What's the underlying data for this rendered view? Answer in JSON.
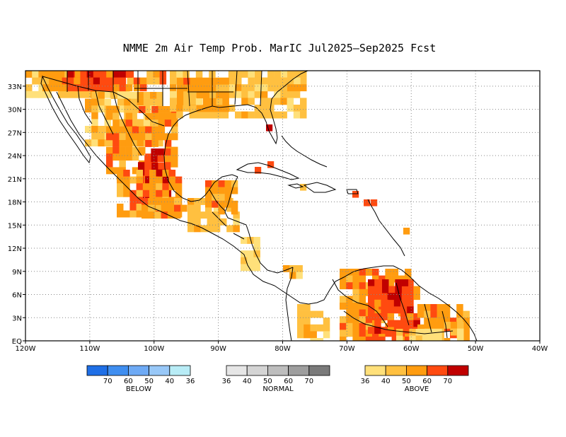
{
  "title": "NMME 2m Air Temp Prob. MarIC  Jul2025–Sep2025 Fcst",
  "map": {
    "lon_range": [
      -120,
      -40
    ],
    "lat_range": [
      0,
      35
    ],
    "x_ticks": [
      "120W",
      "110W",
      "100W",
      "90W",
      "80W",
      "70W",
      "60W",
      "50W",
      "40W"
    ],
    "y_ticks": [
      "EQ",
      "3N",
      "6N",
      "9N",
      "12N",
      "15N",
      "18N",
      "21N",
      "24N",
      "27N",
      "30N",
      "33N"
    ],
    "grid": "dotted"
  },
  "legends": [
    {
      "name": "BELOW",
      "colors": [
        "#1f6fe6",
        "#3f8ef0",
        "#6eaaf5",
        "#98c8f8",
        "#b8ecf6"
      ],
      "labels": [
        "70",
        "60",
        "50",
        "40",
        "36"
      ]
    },
    {
      "name": "NORMAL",
      "colors": [
        "#e6e6e6",
        "#d4d4d4",
        "#bdbdbd",
        "#9e9e9e",
        "#7a7a7a"
      ],
      "labels": [
        "36",
        "40",
        "50",
        "60",
        "70"
      ]
    },
    {
      "name": "ABOVE",
      "colors": [
        "#ffe07a",
        "#ffc040",
        "#ff9c10",
        "#ff4a10",
        "#c00000"
      ],
      "labels": [
        "36",
        "40",
        "50",
        "60",
        "70"
      ]
    }
  ]
}
